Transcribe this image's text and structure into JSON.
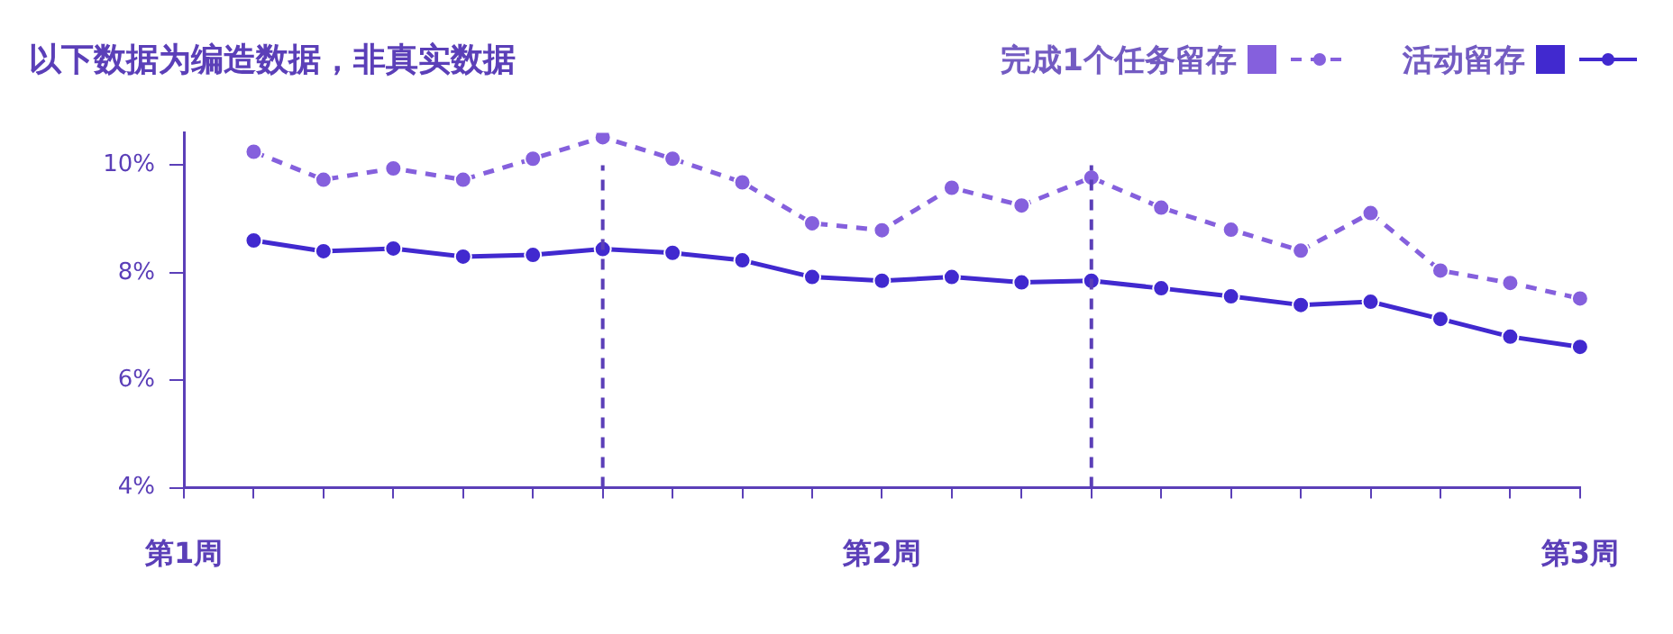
{
  "chart_data": {
    "type": "line",
    "title": "以下数据为编造数据，非真实数据",
    "legend": "top right",
    "marker": "circle",
    "categories": [
      "第1周",
      null,
      null,
      null,
      null,
      null,
      null,
      null,
      null,
      null,
      "第2周",
      null,
      null,
      null,
      null,
      null,
      null,
      null,
      null,
      null,
      "第3周"
    ],
    "ylim": [
      4,
      10.6
    ],
    "yticks": [
      {
        "value": 4,
        "label": "4%"
      },
      {
        "value": 6,
        "label": "6%"
      },
      {
        "value": 8,
        "label": "8%"
      },
      {
        "value": 10,
        "label": "10%"
      }
    ],
    "series": [
      {
        "name": "完成1个任务留存",
        "color": "#8560dd",
        "line_style": "dashed",
        "values": [
          null,
          10.25,
          9.73,
          9.94,
          9.73,
          10.12,
          10.52,
          10.12,
          9.68,
          8.92,
          8.79,
          9.58,
          9.25,
          9.77,
          9.21,
          8.8,
          8.41,
          9.11,
          8.04,
          7.81,
          7.52
        ]
      },
      {
        "name": "活动留存",
        "color": "#4129cf",
        "line_style": "solid",
        "values": [
          null,
          8.6,
          8.4,
          8.45,
          8.3,
          8.33,
          8.44,
          8.37,
          8.23,
          7.92,
          7.85,
          7.92,
          7.82,
          7.85,
          7.71,
          7.56,
          7.4,
          7.46,
          7.14,
          6.81,
          6.62
        ]
      }
    ]
  }
}
